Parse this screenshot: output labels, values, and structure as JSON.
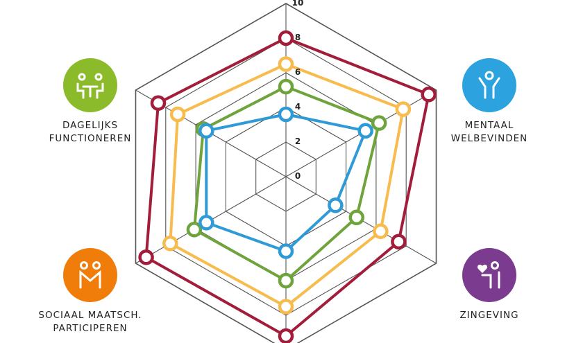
{
  "chart_data": {
    "type": "radar",
    "axes": [
      "",
      "MENTAAL WELBEVINDEN",
      "ZINGEVING",
      "",
      "SOCIAAL MAATSCH. PARTICIPEREN",
      "DAGELIJKS FUNCTIONEREN"
    ],
    "ticks": [
      "0",
      "2",
      "4",
      "6",
      "8",
      "10"
    ],
    "rlim": [
      0,
      10
    ],
    "grid": true,
    "series": [
      {
        "color": "#a31d3a",
        "values": [
          8.0,
          9.5,
          7.5,
          9.2,
          9.3,
          8.5
        ]
      },
      {
        "color": "#f7bb4e",
        "values": [
          6.5,
          7.8,
          6.3,
          7.5,
          7.7,
          7.2
        ]
      },
      {
        "color": "#6fa33b",
        "values": [
          5.2,
          6.2,
          4.7,
          6.0,
          6.1,
          5.5
        ]
      },
      {
        "color": "#2f9bd6",
        "values": [
          3.6,
          5.3,
          3.3,
          4.3,
          5.3,
          5.3
        ]
      }
    ]
  },
  "icons": [
    {
      "name": "table-people-icon",
      "color": "#8bbb2a",
      "label_index": 5
    },
    {
      "name": "person-icon",
      "color": "#2ca3de",
      "label_index": 1
    },
    {
      "name": "people-icon",
      "color": "#f07c0a",
      "label_index": 4
    },
    {
      "name": "heart-person-icon",
      "color": "#7b3b8e",
      "label_index": 2
    }
  ]
}
